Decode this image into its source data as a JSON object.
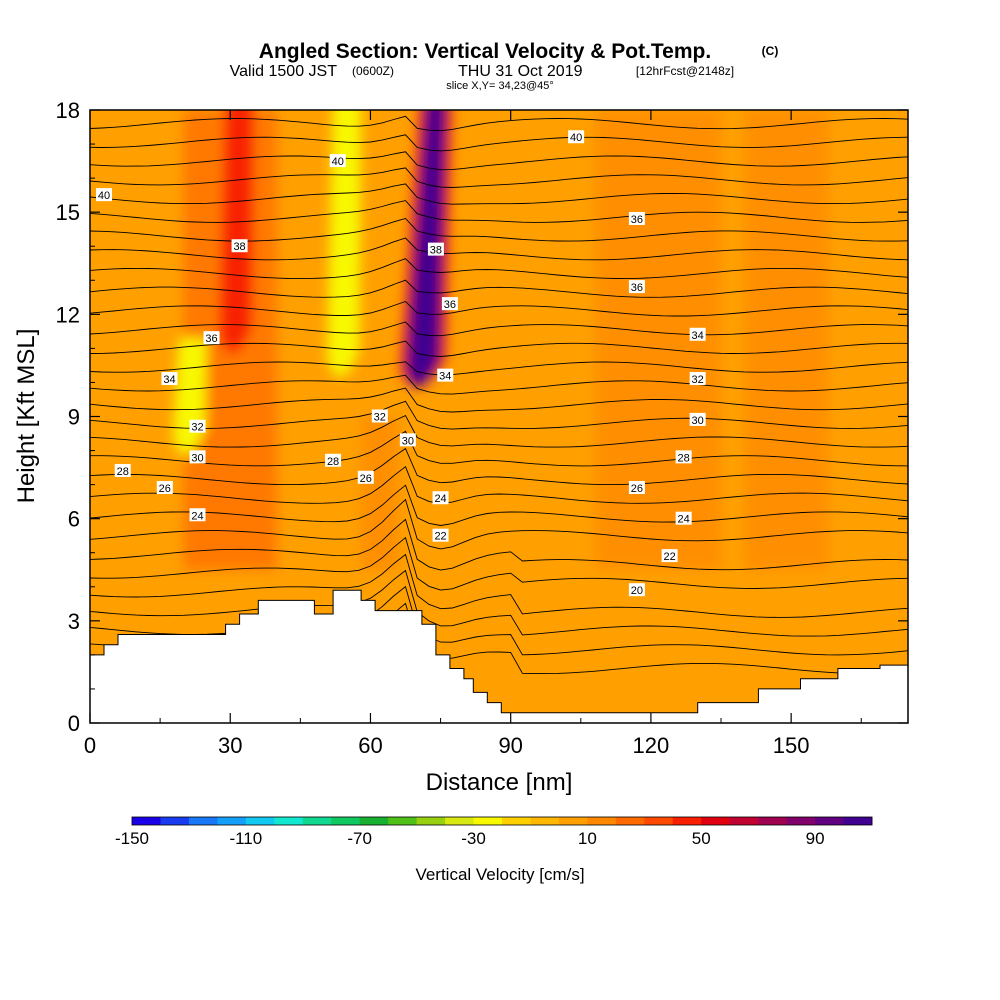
{
  "title": "Angled Section: Vertical Velocity & Pot.Temp.",
  "title_mark": "(C)",
  "subtitle_prefix": "Valid 1500 JST",
  "subtitle_z": "(0600Z)",
  "subtitle_date": "THU 31 Oct 2019",
  "subtitle_fcst": "[12hrFcst@2148z]",
  "slice_label": "slice X,Y= 34,23@45°",
  "chart_data": {
    "type": "heatmap",
    "title": "Angled Section: Vertical Velocity & Pot.Temp.",
    "xlabel": "Distance [nm]",
    "ylabel": "Height [Kft MSL]",
    "xlim": [
      0,
      175
    ],
    "ylim": [
      0,
      18
    ],
    "x_ticks": [
      0,
      30,
      60,
      90,
      120,
      150
    ],
    "x_tick_labels": [
      "0",
      "30",
      "60",
      "90",
      "120",
      "150"
    ],
    "y_ticks": [
      0,
      3,
      6,
      9,
      12,
      15,
      18
    ],
    "y_tick_labels": [
      "0",
      "3",
      "6",
      "9",
      "12",
      "15",
      "18"
    ],
    "colorbar": {
      "label": "Vertical Velocity [cm/s]",
      "min": -150,
      "max": 110,
      "step": 10,
      "tick_values": [
        -150,
        -110,
        -70,
        -30,
        10,
        50,
        90
      ],
      "tick_labels": [
        "-150",
        "-110",
        "-70",
        "-30",
        "10",
        "50",
        "90"
      ],
      "colors": [
        "#1a00e6",
        "#1a3cf0",
        "#1878f8",
        "#14a0f8",
        "#10c8f0",
        "#10e8d0",
        "#10d890",
        "#10c860",
        "#18b030",
        "#50c018",
        "#98d010",
        "#d8e810",
        "#f8f800",
        "#ffd000",
        "#ffb800",
        "#ffa000",
        "#ff8800",
        "#ff6a00",
        "#ff4800",
        "#f82000",
        "#e00010",
        "#c00030",
        "#a00050",
        "#80006c",
        "#600080",
        "#400090"
      ]
    },
    "background_value": 5,
    "features": [
      {
        "name": "updraft core",
        "x": 74,
        "y_bottom": 9.5,
        "y_top": 18,
        "peak_value": 110
      },
      {
        "name": "upper updraft",
        "x": 32,
        "y_bottom": 10.5,
        "y_top": 18,
        "peak_value": 40
      },
      {
        "name": "weak downdraft",
        "x": 55,
        "y_bottom": 9.8,
        "y_top": 18,
        "peak_value": -25
      },
      {
        "name": "weak downdraft",
        "x": 22,
        "y_bottom": 7.5,
        "y_top": 11,
        "peak_value": -25
      }
    ],
    "theta_contour_labels": [
      {
        "text": "40",
        "x": 104,
        "y": 17.2
      },
      {
        "text": "40",
        "x": 53,
        "y": 16.5
      },
      {
        "text": "40",
        "x": 3,
        "y": 15.5
      },
      {
        "text": "38",
        "x": 32,
        "y": 14.0
      },
      {
        "text": "38",
        "x": 74,
        "y": 13.9
      },
      {
        "text": "36",
        "x": 117,
        "y": 14.8
      },
      {
        "text": "36",
        "x": 117,
        "y": 12.8
      },
      {
        "text": "36",
        "x": 77,
        "y": 12.3
      },
      {
        "text": "36",
        "x": 26,
        "y": 11.3
      },
      {
        "text": "34",
        "x": 130,
        "y": 11.4
      },
      {
        "text": "34",
        "x": 76,
        "y": 10.2
      },
      {
        "text": "34",
        "x": 17,
        "y": 10.1
      },
      {
        "text": "32",
        "x": 130,
        "y": 10.1
      },
      {
        "text": "32",
        "x": 62,
        "y": 9.0
      },
      {
        "text": "32",
        "x": 23,
        "y": 8.7
      },
      {
        "text": "30",
        "x": 130,
        "y": 8.9
      },
      {
        "text": "30",
        "x": 68,
        "y": 8.3
      },
      {
        "text": "30",
        "x": 23,
        "y": 7.8
      },
      {
        "text": "28",
        "x": 127,
        "y": 7.8
      },
      {
        "text": "28",
        "x": 52,
        "y": 7.7
      },
      {
        "text": "28",
        "x": 7,
        "y": 7.4
      },
      {
        "text": "26",
        "x": 117,
        "y": 6.9
      },
      {
        "text": "26",
        "x": 59,
        "y": 7.2
      },
      {
        "text": "26",
        "x": 16,
        "y": 6.9
      },
      {
        "text": "24",
        "x": 127,
        "y": 6.0
      },
      {
        "text": "24",
        "x": 75,
        "y": 6.6
      },
      {
        "text": "24",
        "x": 23,
        "y": 6.1
      },
      {
        "text": "22",
        "x": 124,
        "y": 4.9
      },
      {
        "text": "22",
        "x": 75,
        "y": 5.5
      },
      {
        "text": "20",
        "x": 117,
        "y": 3.9
      }
    ],
    "terrain_kft": [
      [
        0,
        2.0
      ],
      [
        3,
        2.0
      ],
      [
        3,
        2.3
      ],
      [
        6,
        2.3
      ],
      [
        6,
        2.6
      ],
      [
        29,
        2.6
      ],
      [
        29,
        2.9
      ],
      [
        32,
        2.9
      ],
      [
        32,
        3.2
      ],
      [
        36,
        3.2
      ],
      [
        36,
        3.6
      ],
      [
        48,
        3.6
      ],
      [
        48,
        3.2
      ],
      [
        52,
        3.2
      ],
      [
        52,
        3.9
      ],
      [
        58,
        3.9
      ],
      [
        58,
        3.6
      ],
      [
        61,
        3.6
      ],
      [
        61,
        3.3
      ],
      [
        71,
        3.3
      ],
      [
        71,
        2.9
      ],
      [
        74,
        2.9
      ],
      [
        74,
        2.0
      ],
      [
        77,
        2.0
      ],
      [
        77,
        1.6
      ],
      [
        80,
        1.6
      ],
      [
        80,
        1.3
      ],
      [
        82,
        1.3
      ],
      [
        82,
        0.9
      ],
      [
        85,
        0.9
      ],
      [
        85,
        0.6
      ],
      [
        88,
        0.6
      ],
      [
        88,
        0.3
      ],
      [
        130,
        0.3
      ],
      [
        130,
        0.6
      ],
      [
        143,
        0.6
      ],
      [
        143,
        1.0
      ],
      [
        152,
        1.0
      ],
      [
        152,
        1.3
      ],
      [
        160,
        1.3
      ],
      [
        160,
        1.6
      ],
      [
        169,
        1.6
      ],
      [
        169,
        1.7
      ],
      [
        175,
        1.7
      ]
    ]
  }
}
